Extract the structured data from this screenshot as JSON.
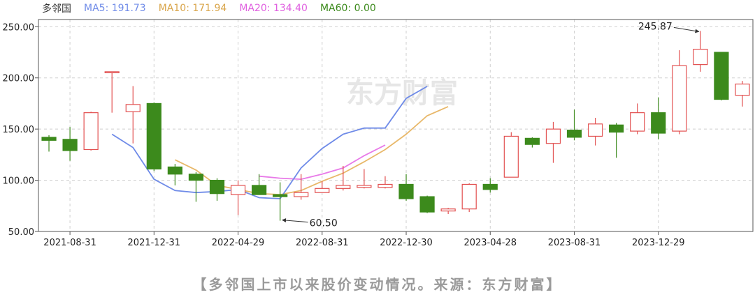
{
  "legend": {
    "name": "多邻国",
    "ma5": "MA5: 191.73",
    "ma10": "MA10: 171.94",
    "ma20": "MA20: 134.40",
    "ma60": "MA60: 0.00"
  },
  "caption": "【多邻国上市以来股价变动情况。来源：东方财富】",
  "watermark": "东方财富",
  "colors": {
    "up": "#e25050",
    "down": "#3c8a1c",
    "ma5": "#6f8be8",
    "ma10": "#e8b86a",
    "ma20": "#e87ae8",
    "ma60": "#3c8a1c",
    "grid": "#cfcfcf"
  },
  "chart_data": {
    "type": "candlestick",
    "ylim": [
      50,
      257
    ],
    "yticks": [
      "250.00",
      "200.00",
      "150.00",
      "100.00",
      "50.00"
    ],
    "yticks_values": [
      250,
      200,
      150,
      100,
      50
    ],
    "xticks": [
      "2021-08-31",
      "2021-12-31",
      "2022-04-29",
      "2022-08-31",
      "2022-12-30",
      "2023-04-28",
      "2023-08-31",
      "2023-12-29"
    ],
    "xticks_index": [
      1,
      5,
      9,
      13,
      17,
      21,
      25,
      29
    ],
    "candles": [
      {
        "o": 142,
        "c": 139,
        "h": 144,
        "l": 128
      },
      {
        "o": 140,
        "c": 129,
        "h": 152,
        "l": 119
      },
      {
        "o": 130,
        "c": 166,
        "h": 167,
        "l": 129
      },
      {
        "o": 206,
        "c": 206,
        "h": 206,
        "l": 166
      },
      {
        "o": 167,
        "c": 174,
        "h": 192,
        "l": 136
      },
      {
        "o": 175,
        "c": 111,
        "h": 176,
        "l": 109
      },
      {
        "o": 113,
        "c": 106,
        "h": 116,
        "l": 95
      },
      {
        "o": 106,
        "c": 100,
        "h": 108,
        "l": 79
      },
      {
        "o": 100,
        "c": 87,
        "h": 102,
        "l": 80
      },
      {
        "o": 86,
        "c": 95,
        "h": 100,
        "l": 66
      },
      {
        "o": 95,
        "c": 86,
        "h": 106,
        "l": 86
      },
      {
        "o": 86,
        "c": 84,
        "h": 98,
        "l": 60.5
      },
      {
        "o": 84,
        "c": 88,
        "h": 106,
        "l": 81
      },
      {
        "o": 88,
        "c": 92,
        "h": 99,
        "l": 88
      },
      {
        "o": 92,
        "c": 95,
        "h": 114,
        "l": 90
      },
      {
        "o": 93,
        "c": 95,
        "h": 111,
        "l": 92
      },
      {
        "o": 93,
        "c": 96,
        "h": 104,
        "l": 92
      },
      {
        "o": 96,
        "c": 82,
        "h": 106,
        "l": 80
      },
      {
        "o": 84,
        "c": 69,
        "h": 85,
        "l": 68
      },
      {
        "o": 70,
        "c": 72,
        "h": 73,
        "l": 67
      },
      {
        "o": 72,
        "c": 96,
        "h": 97,
        "l": 69
      },
      {
        "o": 96,
        "c": 91,
        "h": 102,
        "l": 88
      },
      {
        "o": 103,
        "c": 143,
        "h": 147,
        "l": 103
      },
      {
        "o": 141,
        "c": 135,
        "h": 142,
        "l": 132
      },
      {
        "o": 136,
        "c": 150,
        "h": 157,
        "l": 117
      },
      {
        "o": 149,
        "c": 142,
        "h": 169,
        "l": 139
      },
      {
        "o": 143,
        "c": 155,
        "h": 161,
        "l": 134
      },
      {
        "o": 154,
        "c": 147,
        "h": 156,
        "l": 122
      },
      {
        "o": 148,
        "c": 166,
        "h": 175,
        "l": 145
      },
      {
        "o": 166,
        "c": 146,
        "h": 181,
        "l": 140
      },
      {
        "o": 148,
        "c": 212,
        "h": 227,
        "l": 145
      },
      {
        "o": 213,
        "c": 228,
        "h": 245.87,
        "l": 206
      },
      {
        "o": 225,
        "c": 179,
        "h": 225,
        "l": 178
      },
      {
        "o": 183,
        "c": 194,
        "h": 197,
        "l": 172
      }
    ],
    "ma5": [
      [
        6,
        145
      ],
      [
        8,
        132
      ],
      [
        10,
        101
      ],
      [
        12,
        90
      ],
      [
        14,
        88
      ],
      [
        16,
        89
      ],
      [
        18,
        91
      ],
      [
        20,
        83
      ],
      [
        22,
        82
      ],
      [
        24,
        112
      ],
      [
        26,
        131
      ],
      [
        28,
        145
      ],
      [
        30,
        151
      ],
      [
        32,
        151
      ],
      [
        34,
        180
      ],
      [
        36,
        191.73
      ]
    ],
    "ma10": [
      [
        12,
        120
      ],
      [
        14,
        110
      ],
      [
        16,
        95
      ],
      [
        18,
        91
      ],
      [
        20,
        87
      ],
      [
        22,
        86
      ],
      [
        24,
        90
      ],
      [
        26,
        99
      ],
      [
        28,
        107
      ],
      [
        30,
        118
      ],
      [
        32,
        130
      ],
      [
        34,
        145
      ],
      [
        36,
        163
      ],
      [
        38,
        171.94
      ]
    ],
    "ma20": [
      [
        20,
        104
      ],
      [
        22,
        102
      ],
      [
        24,
        101
      ],
      [
        26,
        106
      ],
      [
        28,
        112
      ],
      [
        30,
        124
      ],
      [
        32,
        134.4
      ]
    ],
    "annotations": [
      {
        "label": "245.87",
        "candle": 31,
        "value": 245.87
      },
      {
        "label": "60.50",
        "candle": 11,
        "value": 60.5
      }
    ]
  }
}
